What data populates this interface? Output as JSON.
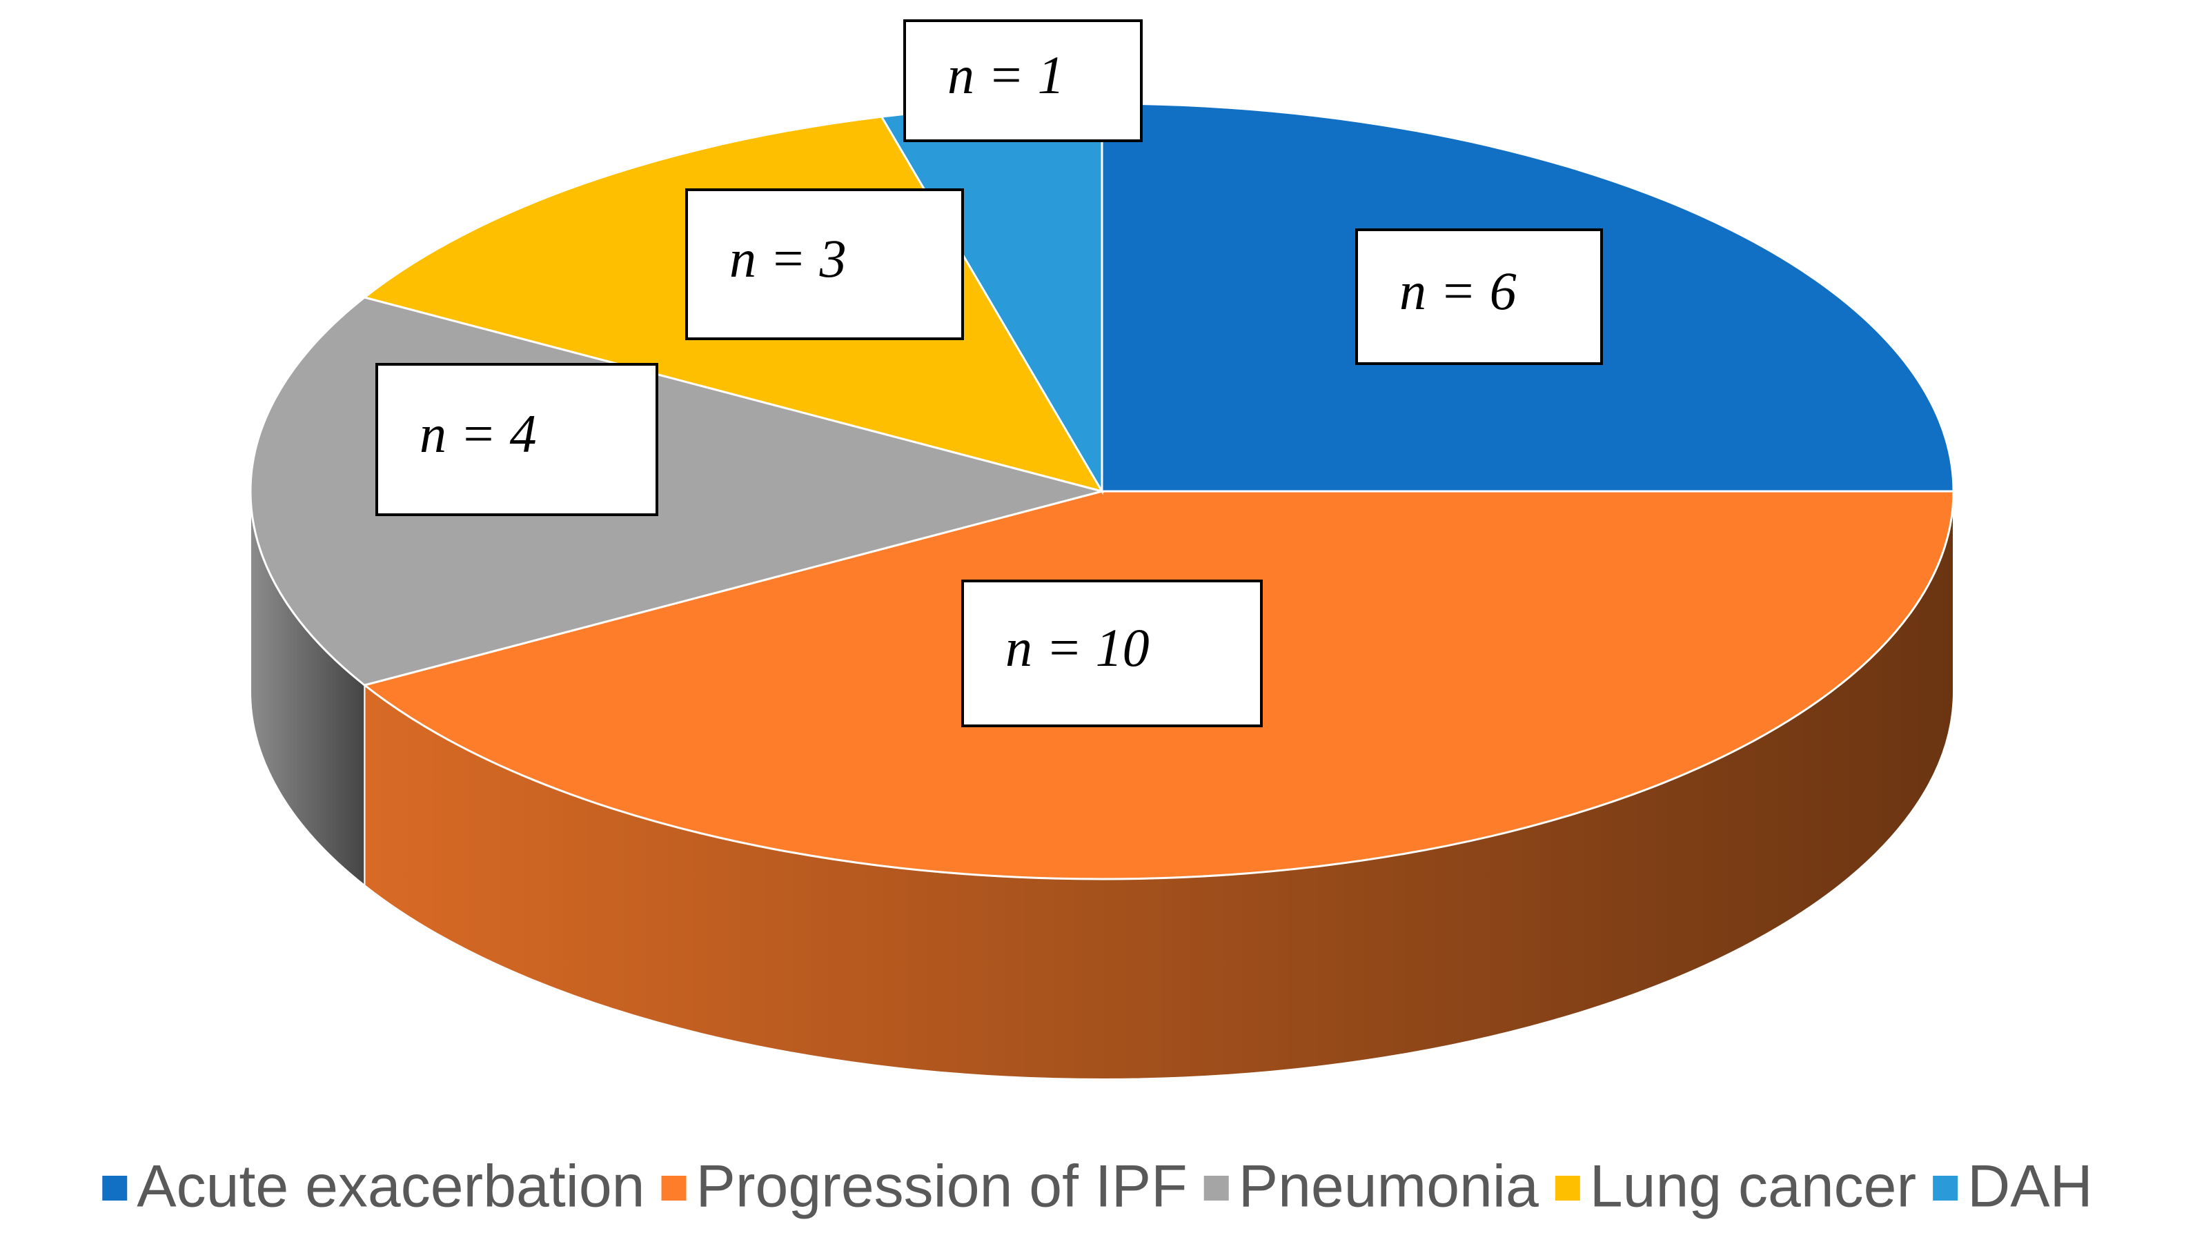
{
  "chart_data": {
    "type": "pie",
    "categories": [
      "Acute exacerbation",
      "Progression of IPF",
      "Pneumonia",
      "Lung cancer",
      "DAH"
    ],
    "values": [
      6,
      10,
      4,
      3,
      1
    ],
    "value_labels": [
      "n = 6",
      "n = 10",
      "n = 4",
      "n = 3",
      "n = 1"
    ],
    "colors": [
      "#1170c4",
      "#fe7d2b",
      "#a5a5a5",
      "#fdbf00",
      "#2b9ad8"
    ],
    "legend": "bottom"
  }
}
